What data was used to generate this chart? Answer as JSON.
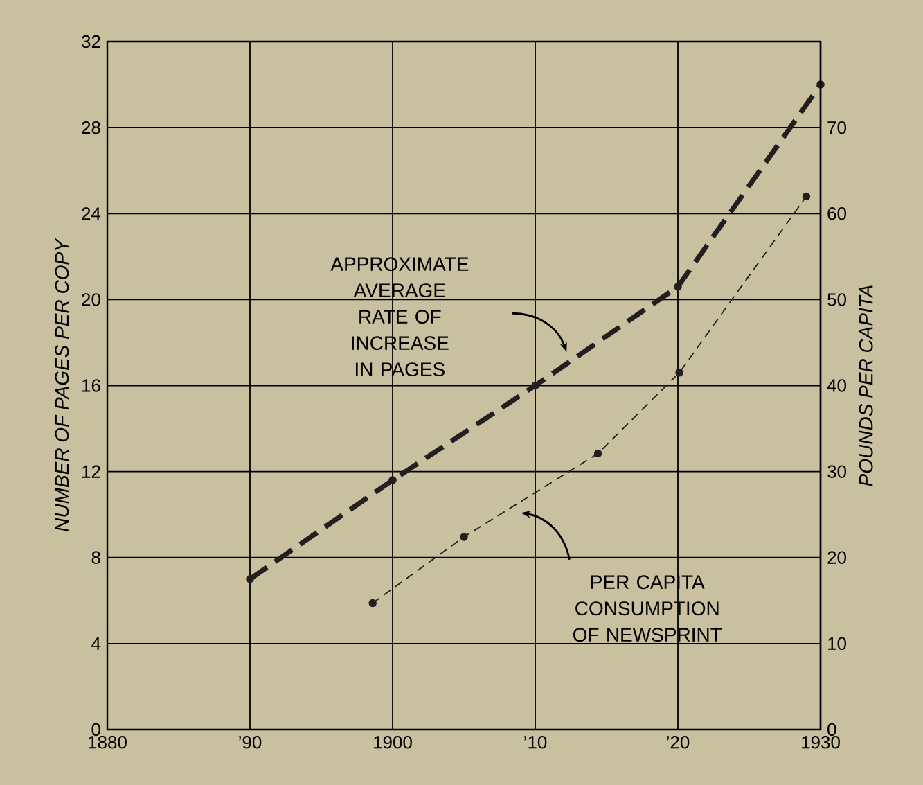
{
  "chart_data": {
    "type": "line",
    "ylabel": "NUMBER OF PAGES PER COPY",
    "y2label": "POUNDS PER CAPITA",
    "xlim": [
      1880,
      1930
    ],
    "xticks": [
      1880,
      {
        "value": 1890,
        "label": "’90"
      },
      1900,
      {
        "value": 1910,
        "label": "’10"
      },
      {
        "value": 1920,
        "label": "’20"
      },
      1930
    ],
    "ylim": [
      0,
      32
    ],
    "yticks": [
      0,
      4,
      8,
      12,
      16,
      20,
      24,
      28,
      32
    ],
    "y2lim": [
      0,
      80
    ],
    "y2ticks": [
      0,
      10,
      20,
      30,
      40,
      50,
      60,
      70
    ],
    "grid": true,
    "marker": "circle",
    "line_style": "dashed",
    "series": [
      {
        "x": [
          1890,
          1900,
          1910,
          1920,
          1930
        ],
        "values": [
          7,
          11.6,
          16,
          20.6,
          30
        ],
        "color": "#231f20"
      },
      {
        "axis": "y2",
        "x": [
          1898.6,
          1905,
          1914.4,
          1920.1,
          1929
        ],
        "values": [
          14.7,
          22.4,
          32.1,
          41.5,
          62
        ],
        "color": "#231f20"
      }
    ],
    "annotations": [
      "APPROXIMATE AVERAGE RATE OF INCREASE IN PAGES",
      "PER CAPITA CONSUMPTION OF NEWSPRINT"
    ]
  }
}
